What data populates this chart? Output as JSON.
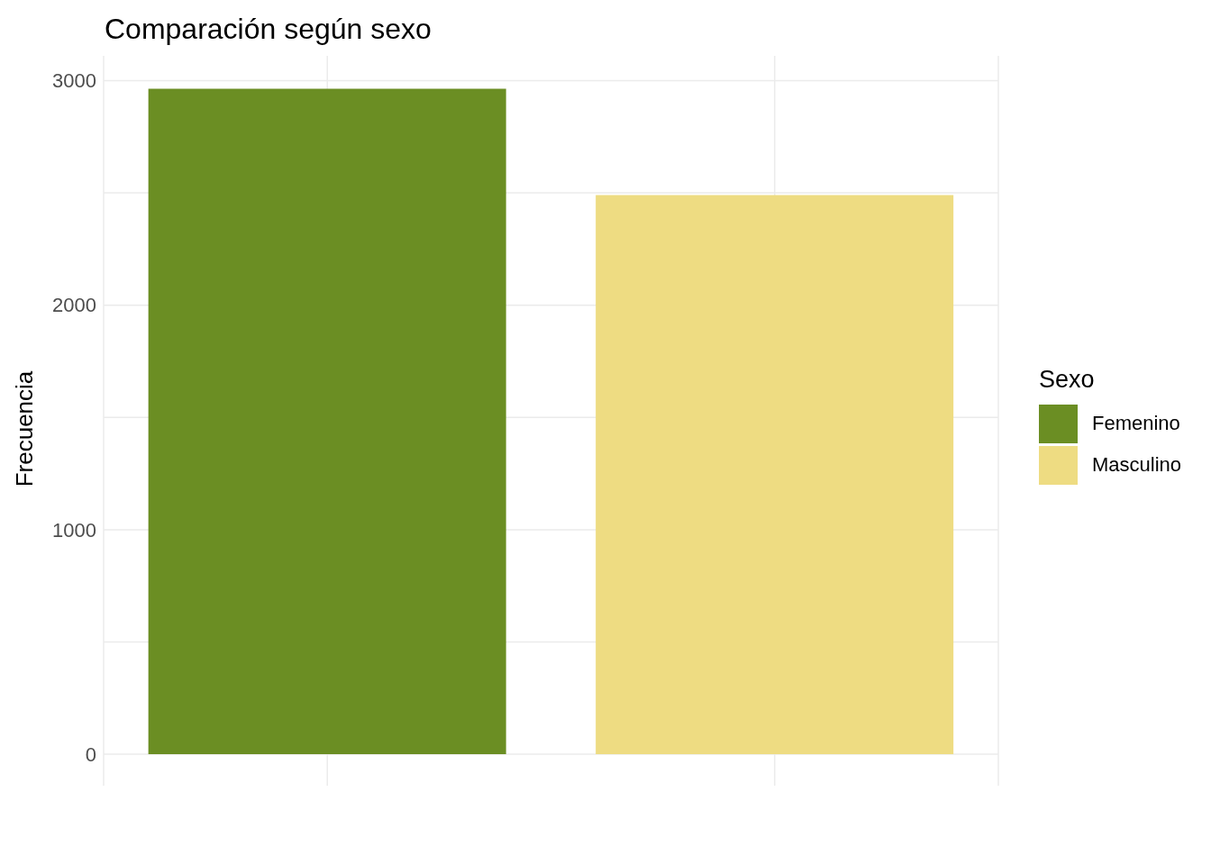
{
  "chart_data": {
    "type": "bar",
    "title": "Comparación según sexo",
    "ylabel": "Frecuencia",
    "legend_title": "Sexo",
    "categories": [
      null,
      null
    ],
    "series": [
      {
        "name": "Femenino",
        "color": "#6b8e23",
        "values": [
          2964,
          null
        ]
      },
      {
        "name": "Masculino",
        "color": "#eedc82",
        "values": [
          null,
          2490
        ]
      }
    ],
    "ylim": [
      -140,
      3110
    ],
    "yticks": [
      0,
      {
        "value": 500,
        "label": null
      },
      1000,
      {
        "value": 1500,
        "label": null
      },
      2000,
      {
        "value": 2500,
        "label": null
      },
      3000
    ],
    "grid": true,
    "legend": "right"
  }
}
